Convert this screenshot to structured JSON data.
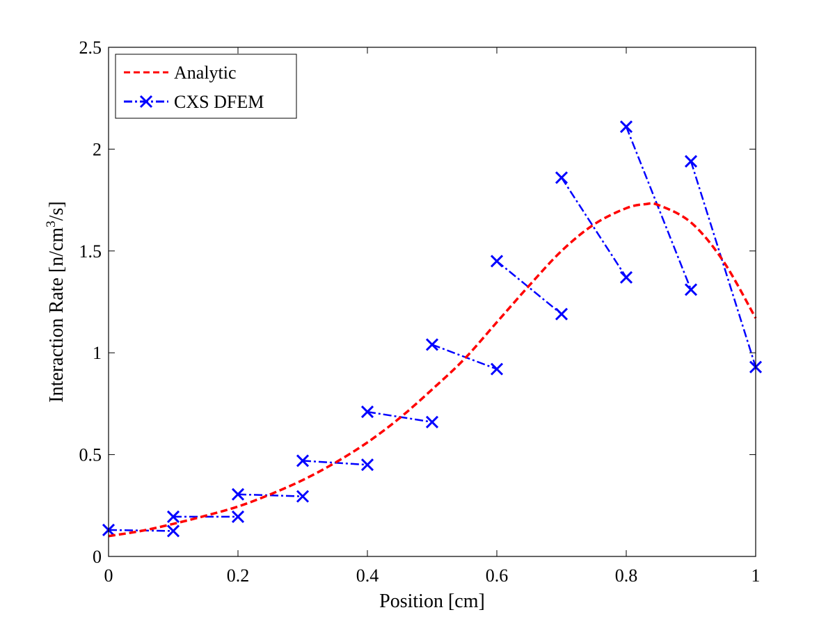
{
  "chart_data": {
    "type": "line",
    "title": "",
    "xlabel": "Position [cm]",
    "ylabel": {
      "prefix": "Interaction Rate [n/cm",
      "superscript": "3",
      "suffix": "/s]"
    },
    "xlim": [
      0,
      1
    ],
    "ylim": [
      0,
      2.5
    ],
    "x_ticks": [
      0,
      0.2,
      0.4,
      0.6,
      0.8,
      1
    ],
    "x_tick_labels": [
      "0",
      "0.2",
      "0.4",
      "0.6",
      "0.8",
      "1"
    ],
    "y_ticks": [
      0,
      0.5,
      1,
      1.5,
      2,
      2.5
    ],
    "y_tick_labels": [
      "0",
      "0.5",
      "1",
      "1.5",
      "2",
      "2.5"
    ],
    "grid": false,
    "legend_position": "top-left",
    "series": [
      {
        "name": "Analytic",
        "color": "#ff0000",
        "line_style": "dashed",
        "marker": "none",
        "x": [
          0,
          0.05,
          0.1,
          0.15,
          0.2,
          0.25,
          0.3,
          0.35,
          0.4,
          0.45,
          0.5,
          0.55,
          0.6,
          0.65,
          0.7,
          0.75,
          0.8,
          0.83,
          0.85,
          0.9,
          0.95,
          1.0
        ],
        "y": [
          0.1,
          0.125,
          0.16,
          0.2,
          0.245,
          0.305,
          0.375,
          0.46,
          0.56,
          0.68,
          0.82,
          0.97,
          1.15,
          1.33,
          1.5,
          1.63,
          1.71,
          1.73,
          1.725,
          1.64,
          1.45,
          1.17
        ]
      },
      {
        "name": "CXS DFEM",
        "color": "#0000ff",
        "line_style": "dashdot",
        "marker": "x",
        "segments": [
          {
            "x": [
              0,
              0.1
            ],
            "y": [
              0.13,
              0.125
            ]
          },
          {
            "x": [
              0.1,
              0.2
            ],
            "y": [
              0.195,
              0.195
            ]
          },
          {
            "x": [
              0.2,
              0.3
            ],
            "y": [
              0.305,
              0.295
            ]
          },
          {
            "x": [
              0.3,
              0.4
            ],
            "y": [
              0.47,
              0.45
            ]
          },
          {
            "x": [
              0.4,
              0.5
            ],
            "y": [
              0.71,
              0.66
            ]
          },
          {
            "x": [
              0.5,
              0.6
            ],
            "y": [
              1.04,
              0.92
            ]
          },
          {
            "x": [
              0.6,
              0.7
            ],
            "y": [
              1.45,
              1.19
            ]
          },
          {
            "x": [
              0.7,
              0.8
            ],
            "y": [
              1.86,
              1.37
            ]
          },
          {
            "x": [
              0.8,
              0.9
            ],
            "y": [
              2.11,
              1.31
            ]
          },
          {
            "x": [
              0.9,
              1.0
            ],
            "y": [
              1.94,
              0.93
            ]
          }
        ]
      }
    ]
  }
}
